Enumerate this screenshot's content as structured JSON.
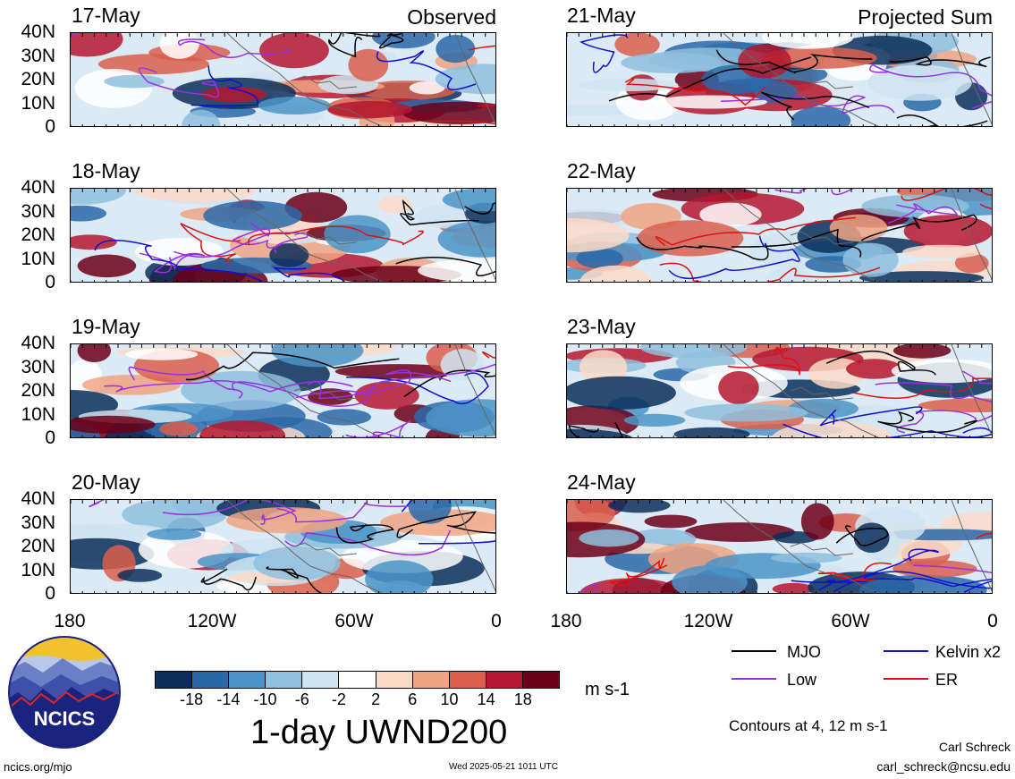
{
  "panels": [
    {
      "date": "17-May",
      "corner": "Observed"
    },
    {
      "date": "21-May",
      "corner": "Projected Sum"
    },
    {
      "date": "18-May",
      "corner": ""
    },
    {
      "date": "22-May",
      "corner": ""
    },
    {
      "date": "19-May",
      "corner": ""
    },
    {
      "date": "23-May",
      "corner": ""
    },
    {
      "date": "20-May",
      "corner": ""
    },
    {
      "date": "24-May",
      "corner": ""
    }
  ],
  "lat_labels": [
    "40N",
    "30N",
    "20N",
    "10N",
    "0"
  ],
  "lon_labels": [
    "180",
    "120W",
    "60W",
    "0"
  ],
  "legend": {
    "items": [
      {
        "label": "MJO",
        "color": "#000000"
      },
      {
        "label": "Kelvin x2",
        "color": "#1010d0"
      },
      {
        "label": "Low",
        "color": "#9a30e0"
      },
      {
        "label": "ER",
        "color": "#e01010"
      }
    ],
    "contours_note": "Contours at 4, 12 m s-1"
  },
  "colorbar": {
    "colors": [
      "#0b2f5a",
      "#2a69a8",
      "#4b94c7",
      "#8fc0de",
      "#cfe4f1",
      "#ffffff",
      "#fbdac8",
      "#f0a582",
      "#d95f4c",
      "#b4172f",
      "#6b0019"
    ],
    "ticks": [
      "-18",
      "-14",
      "-10",
      "-6",
      "-2",
      "2",
      "6",
      "10",
      "14",
      "18"
    ],
    "unit": "m s-1",
    "title": "1-day UWND200"
  },
  "logo_text": "NCICS",
  "footer": {
    "url": "ncics.org/mjo",
    "timestamp": "Wed 2025-05-21 1011 UTC",
    "author": "Carl Schreck",
    "email": "carl_schreck@ncsu.edu"
  }
}
